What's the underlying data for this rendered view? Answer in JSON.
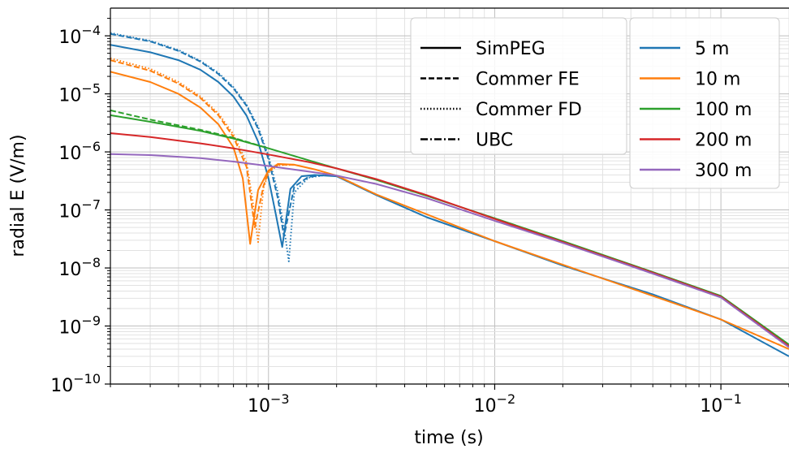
{
  "chart_data": {
    "type": "line",
    "title": "",
    "xlabel": "time (s)",
    "ylabel": "radial E (V/m)",
    "xscale": "log",
    "yscale": "log",
    "xlim": [
      0.0002,
      0.2
    ],
    "ylim": [
      1e-10,
      0.0003
    ],
    "grid": "major and minor",
    "x_tick_labels": [
      "10^-3",
      "10^-2",
      "10^-1"
    ],
    "y_tick_labels": [
      "10^-10",
      "10^-9",
      "10^-8",
      "10^-7",
      "10^-6",
      "10^-5",
      "10^-4"
    ],
    "legend_methods": {
      "placement": "top-center",
      "entries": [
        {
          "name": "SimPEG",
          "style": "solid"
        },
        {
          "name": "Commer FE",
          "style": "dashed"
        },
        {
          "name": "Commer FD",
          "style": "dotted"
        },
        {
          "name": "UBC",
          "style": "dashdot"
        }
      ]
    },
    "legend_offsets": {
      "placement": "top-right",
      "entries": [
        {
          "name": "5 m",
          "color": "#1f77b4"
        },
        {
          "name": "10 m",
          "color": "#ff7f0e"
        },
        {
          "name": "100 m",
          "color": "#2ca02c"
        },
        {
          "name": "200 m",
          "color": "#d62728"
        },
        {
          "name": "300 m",
          "color": "#9467bd"
        }
      ]
    },
    "series": [
      {
        "offset": "5 m",
        "method": "SimPEG",
        "color": "#1f77b4",
        "style": "solid",
        "x": [
          0.0002,
          0.0003,
          0.0004,
          0.0005,
          0.0006,
          0.0007,
          0.0008,
          0.0009,
          0.001,
          0.00108,
          0.00115,
          0.00125,
          0.0014,
          0.0016,
          0.002,
          0.003,
          0.005,
          0.01,
          0.02,
          0.05,
          0.1,
          0.2
        ],
        "y": [
          7e-05,
          5.2e-05,
          3.8e-05,
          2.6e-05,
          1.6e-05,
          9e-06,
          4.2e-06,
          1.5e-06,
          3.5e-07,
          8e-08,
          2.3e-08,
          2.3e-07,
          3.8e-07,
          4e-07,
          3.8e-07,
          1.8e-07,
          7.5e-08,
          2.9e-08,
          1.1e-08,
          3.5e-09,
          1.3e-09,
          3e-10
        ]
      },
      {
        "offset": "5 m",
        "method": "Commer FE",
        "color": "#1f77b4",
        "style": "dashed",
        "x": [
          0.0002,
          0.0003,
          0.0004,
          0.0005,
          0.0006,
          0.0007,
          0.0008,
          0.0009,
          0.001,
          0.0011,
          0.00117,
          0.0013,
          0.0015,
          0.0018,
          0.002
        ],
        "y": [
          0.000108,
          8e-05,
          5.5e-05,
          3.6e-05,
          2.2e-05,
          1.25e-05,
          6.2e-06,
          2.5e-06,
          7.5e-07,
          1.6e-07,
          3.5e-08,
          2.5e-07,
          3.7e-07,
          4e-07,
          3.8e-07
        ]
      },
      {
        "offset": "5 m",
        "method": "Commer FD",
        "color": "#1f77b4",
        "style": "dotted",
        "x": [
          0.0002,
          0.0003,
          0.0004,
          0.0005,
          0.0006,
          0.0007,
          0.0008,
          0.0009,
          0.001,
          0.0011,
          0.00118,
          0.00123,
          0.0013,
          0.0015,
          0.0018,
          0.002
        ],
        "y": [
          0.000112,
          8.2e-05,
          5.7e-05,
          3.7e-05,
          2.3e-05,
          1.3e-05,
          6.5e-06,
          2.7e-06,
          8.5e-07,
          2e-07,
          4e-08,
          1.3e-08,
          2e-07,
          3.6e-07,
          4e-07,
          3.8e-07
        ]
      },
      {
        "offset": "10 m",
        "method": "SimPEG",
        "color": "#ff7f0e",
        "style": "solid",
        "x": [
          0.0002,
          0.0003,
          0.0004,
          0.0005,
          0.0006,
          0.0007,
          0.00077,
          0.00083,
          0.0009,
          0.001,
          0.0011,
          0.0013,
          0.0016,
          0.002,
          0.003,
          0.01,
          0.1,
          0.2
        ],
        "y": [
          2.4e-05,
          1.6e-05,
          1e-05,
          5.8e-06,
          3e-06,
          1.2e-06,
          3.5e-07,
          2.6e-08,
          2.2e-07,
          4.8e-07,
          6.2e-07,
          6e-07,
          5e-07,
          3.9e-07,
          1.85e-07,
          2.9e-08,
          1.3e-09,
          4e-10
        ]
      },
      {
        "offset": "10 m",
        "method": "Commer FE",
        "color": "#ff7f0e",
        "style": "dashed",
        "x": [
          0.0002,
          0.0003,
          0.0004,
          0.0005,
          0.0006,
          0.0007,
          0.0008,
          0.00087,
          0.00095,
          0.001,
          0.0011,
          0.0013
        ],
        "y": [
          3.8e-05,
          2.5e-05,
          1.5e-05,
          8.5e-06,
          4.3e-06,
          1.8e-06,
          5.5e-07,
          5e-08,
          2.6e-07,
          4.6e-07,
          6e-07,
          6e-07
        ]
      },
      {
        "offset": "10 m",
        "method": "Commer FD",
        "color": "#ff7f0e",
        "style": "dotted",
        "x": [
          0.0002,
          0.0003,
          0.0004,
          0.0005,
          0.0006,
          0.0007,
          0.0008,
          0.00085,
          0.0009,
          0.00095,
          0.001,
          0.0011,
          0.0013
        ],
        "y": [
          4.1e-05,
          2.7e-05,
          1.6e-05,
          9e-06,
          4.6e-06,
          2e-06,
          6.5e-07,
          1.5e-07,
          2.8e-08,
          2.4e-07,
          4.4e-07,
          5.9e-07,
          6e-07
        ]
      },
      {
        "offset": "100 m",
        "method": "SimPEG",
        "color": "#2ca02c",
        "style": "solid",
        "x": [
          0.0002,
          0.0003,
          0.0005,
          0.0007,
          0.001,
          0.0015,
          0.002,
          0.003,
          0.005,
          0.01,
          0.02,
          0.05,
          0.1,
          0.2
        ],
        "y": [
          4.3e-06,
          3.3e-06,
          2.3e-06,
          1.7e-06,
          1.15e-06,
          7.2e-07,
          5.2e-07,
          3.3e-07,
          1.75e-07,
          7.2e-08,
          2.9e-08,
          8.5e-09,
          3.3e-09,
          4.8e-10
        ]
      },
      {
        "offset": "100 m",
        "method": "Commer FE",
        "color": "#2ca02c",
        "style": "dashed",
        "x": [
          0.0002,
          0.0003,
          0.0005,
          0.0007,
          0.001
        ],
        "y": [
          5.2e-06,
          3.6e-06,
          2.4e-06,
          1.75e-06,
          1.15e-06
        ]
      },
      {
        "offset": "200 m",
        "method": "SimPEG",
        "color": "#d62728",
        "style": "solid",
        "x": [
          0.0002,
          0.0003,
          0.0005,
          0.0007,
          0.001,
          0.0015,
          0.002,
          0.003,
          0.005,
          0.01,
          0.02,
          0.05,
          0.1,
          0.2
        ],
        "y": [
          2.1e-06,
          1.8e-06,
          1.4e-06,
          1.15e-06,
          9e-07,
          6.7e-07,
          5.2e-07,
          3.4e-07,
          1.8e-07,
          7e-08,
          2.8e-08,
          8.3e-09,
          3.2e-09,
          4.5e-10
        ]
      },
      {
        "offset": "300 m",
        "method": "SimPEG",
        "color": "#9467bd",
        "style": "solid",
        "x": [
          0.0002,
          0.0003,
          0.0005,
          0.0007,
          0.001,
          0.0015,
          0.002,
          0.003,
          0.005,
          0.01,
          0.02,
          0.05,
          0.1,
          0.2
        ],
        "y": [
          9.2e-07,
          8.8e-07,
          7.8e-07,
          6.8e-07,
          5.7e-07,
          4.6e-07,
          3.9e-07,
          2.8e-07,
          1.6e-07,
          6.5e-08,
          2.7e-08,
          8e-09,
          3.1e-09,
          4.3e-10
        ]
      }
    ]
  }
}
